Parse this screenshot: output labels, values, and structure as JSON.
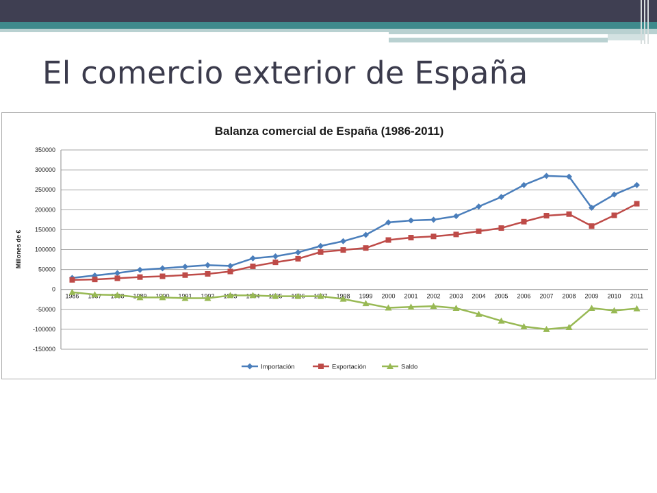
{
  "slide": {
    "title": "El comercio exterior de España"
  },
  "chart_data": {
    "type": "line",
    "title": "Balanza comercial de España (1986-2011)",
    "ylabel": "Millones de €",
    "xlabel": "",
    "ylim": [
      -150000,
      350000
    ],
    "ytick_step": 50000,
    "grid": true,
    "legend_position": "bottom",
    "categories": [
      "1986",
      "1987",
      "1988",
      "1989",
      "1990",
      "1991",
      "1992",
      "1993",
      "1994",
      "1995",
      "1996",
      "1997",
      "1998",
      "1999",
      "2000",
      "2001",
      "2002",
      "2003",
      "2004",
      "2005",
      "2006",
      "2007",
      "2008",
      "2009",
      "2010",
      "2011"
    ],
    "series": [
      {
        "name": "Importación",
        "color": "#4a7ebb",
        "marker": "diamond",
        "values": [
          29000,
          35000,
          41000,
          49000,
          53000,
          57000,
          61000,
          59000,
          78000,
          83000,
          93000,
          109000,
          121000,
          137000,
          168000,
          173000,
          175000,
          184000,
          208000,
          232000,
          262000,
          285000,
          283000,
          205000,
          238000,
          262000
        ]
      },
      {
        "name": "Exportación",
        "color": "#be4b48",
        "marker": "square",
        "values": [
          24000,
          25000,
          28000,
          31000,
          33000,
          36000,
          39000,
          45000,
          58000,
          68000,
          77000,
          94000,
          99000,
          104000,
          124000,
          130000,
          133000,
          138000,
          146000,
          154000,
          170000,
          185000,
          189000,
          159000,
          186000,
          215000
        ]
      },
      {
        "name": "Saldo",
        "color": "#98b954",
        "marker": "triangle",
        "values": [
          -7000,
          -13000,
          -14000,
          -20000,
          -20000,
          -22000,
          -22000,
          -15000,
          -15000,
          -17000,
          -17000,
          -17000,
          -24000,
          -35000,
          -46000,
          -44000,
          -42000,
          -47000,
          -62000,
          -79000,
          -93000,
          -100000,
          -95000,
          -47000,
          -53000,
          -48000
        ]
      }
    ]
  }
}
